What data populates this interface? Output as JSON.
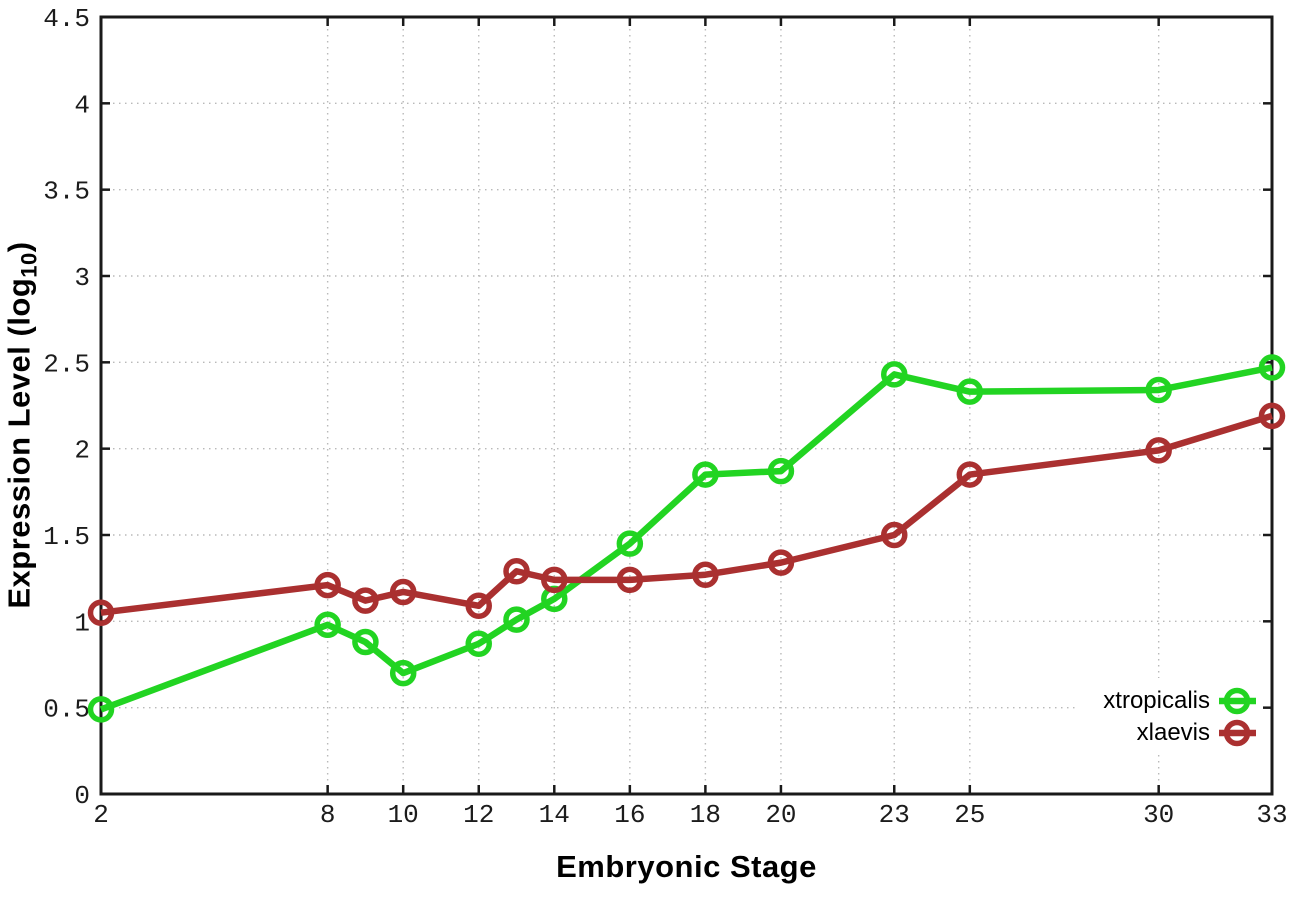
{
  "chart_data": {
    "type": "line",
    "title": "",
    "xlabel": "Embryonic Stage",
    "ylabel": "Expression Level (log10)",
    "ylabel_parts": {
      "pre": "Expression Level (log",
      "sub": "10",
      "post": ")"
    },
    "x": [
      2,
      8,
      9,
      10,
      12,
      13,
      14,
      16,
      18,
      20,
      23,
      25,
      30,
      33
    ],
    "xticks": [
      2,
      8,
      10,
      12,
      14,
      16,
      18,
      20,
      23,
      25,
      30,
      33
    ],
    "yticks": [
      0,
      0.5,
      1,
      1.5,
      2,
      2.5,
      3,
      3.5,
      4,
      4.5
    ],
    "xlim": [
      2,
      33
    ],
    "ylim": [
      0,
      4.5
    ],
    "grid": true,
    "legend_position": "inside-bottom-right",
    "series": [
      {
        "name": "xtropicalis",
        "color": "#22d422",
        "marker": "open-circle",
        "values": [
          0.49,
          0.98,
          0.88,
          0.7,
          0.87,
          1.01,
          1.13,
          1.45,
          1.85,
          1.87,
          2.43,
          2.33,
          2.34,
          2.47
        ]
      },
      {
        "name": "xlaevis",
        "color": "#aa3030",
        "marker": "open-circle",
        "values": [
          1.05,
          1.21,
          1.12,
          1.17,
          1.09,
          1.29,
          1.24,
          1.24,
          1.27,
          1.34,
          1.5,
          1.85,
          1.99,
          2.19
        ]
      }
    ]
  },
  "colors": {
    "background": "#ffffff",
    "grid": "#b9b9b9",
    "axis": "#1a1a1a",
    "tick_text": "#1c1c1c"
  }
}
